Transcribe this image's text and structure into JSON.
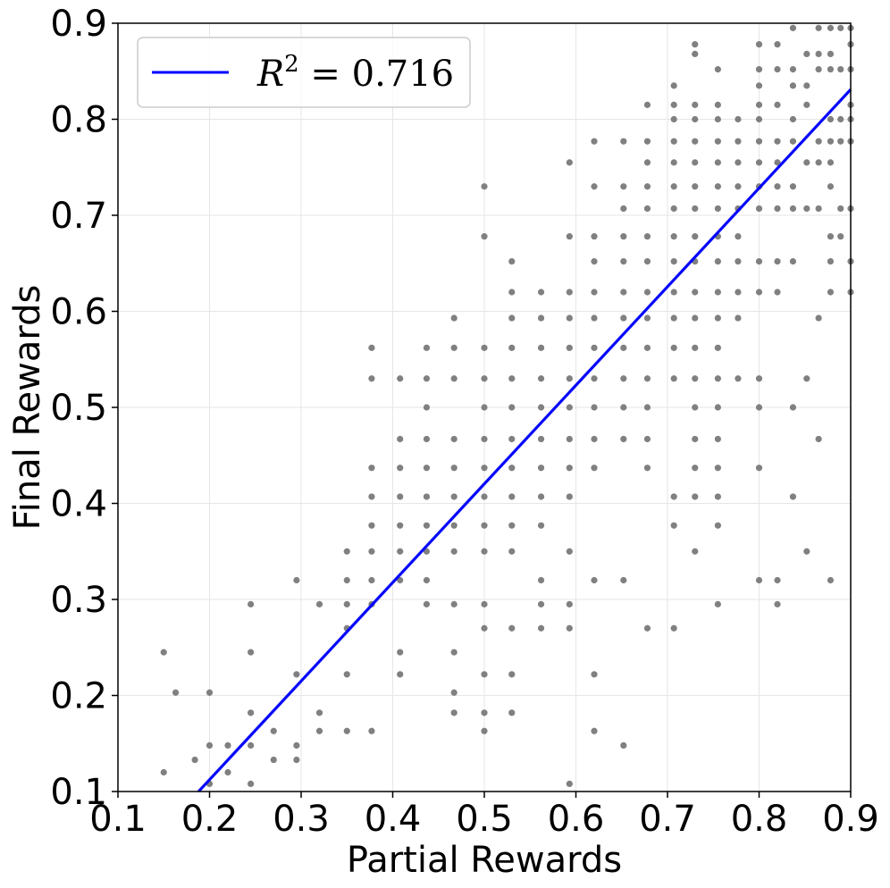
{
  "chart_data": {
    "type": "scatter",
    "xlabel": "Partial Rewards",
    "ylabel": "Final Rewards",
    "xlim": [
      0.1,
      0.9
    ],
    "ylim": [
      0.1,
      0.9
    ],
    "xticks": [
      "0.1",
      "0.2",
      "0.3",
      "0.4",
      "0.5",
      "0.6",
      "0.7",
      "0.8",
      "0.9"
    ],
    "yticks": [
      "0.1",
      "0.2",
      "0.3",
      "0.4",
      "0.5",
      "0.6",
      "0.7",
      "0.8",
      "0.9"
    ],
    "grid": true,
    "legend": {
      "placement": "top-left",
      "label": "R^2 = 0.716",
      "symbol": "R",
      "exponent": "2",
      "equals_value": " = 0.716"
    },
    "colors": {
      "points": "#808080",
      "fit_line": "#0000ff",
      "grid": "#e6e6e6"
    },
    "fit_line": {
      "r_squared": 0.716,
      "x": [
        0.188,
        0.9
      ],
      "y": [
        0.1,
        0.831
      ]
    },
    "series": [
      {
        "points": [
          [
            0.15,
            0.12
          ],
          [
            0.15,
            0.245
          ],
          [
            0.163,
            0.203
          ],
          [
            0.184,
            0.133
          ],
          [
            0.2,
            0.108
          ],
          [
            0.2,
            0.148
          ],
          [
            0.2,
            0.203
          ],
          [
            0.22,
            0.12
          ],
          [
            0.22,
            0.148
          ],
          [
            0.245,
            0.108
          ],
          [
            0.245,
            0.148
          ],
          [
            0.245,
            0.182
          ],
          [
            0.245,
            0.245
          ],
          [
            0.245,
            0.295
          ],
          [
            0.27,
            0.133
          ],
          [
            0.27,
            0.163
          ],
          [
            0.295,
            0.133
          ],
          [
            0.295,
            0.148
          ],
          [
            0.295,
            0.222
          ],
          [
            0.295,
            0.32
          ],
          [
            0.32,
            0.163
          ],
          [
            0.32,
            0.182
          ],
          [
            0.32,
            0.295
          ],
          [
            0.35,
            0.163
          ],
          [
            0.35,
            0.222
          ],
          [
            0.35,
            0.27
          ],
          [
            0.35,
            0.295
          ],
          [
            0.35,
            0.32
          ],
          [
            0.35,
            0.35
          ],
          [
            0.377,
            0.163
          ],
          [
            0.377,
            0.295
          ],
          [
            0.377,
            0.32
          ],
          [
            0.377,
            0.35
          ],
          [
            0.377,
            0.377
          ],
          [
            0.377,
            0.407
          ],
          [
            0.377,
            0.437
          ],
          [
            0.377,
            0.53
          ],
          [
            0.377,
            0.562
          ],
          [
            0.408,
            0.222
          ],
          [
            0.408,
            0.245
          ],
          [
            0.408,
            0.32
          ],
          [
            0.408,
            0.35
          ],
          [
            0.408,
            0.377
          ],
          [
            0.408,
            0.407
          ],
          [
            0.408,
            0.437
          ],
          [
            0.408,
            0.467
          ],
          [
            0.408,
            0.53
          ],
          [
            0.437,
            0.295
          ],
          [
            0.437,
            0.32
          ],
          [
            0.437,
            0.35
          ],
          [
            0.437,
            0.377
          ],
          [
            0.437,
            0.407
          ],
          [
            0.437,
            0.437
          ],
          [
            0.437,
            0.467
          ],
          [
            0.437,
            0.5
          ],
          [
            0.437,
            0.53
          ],
          [
            0.437,
            0.562
          ],
          [
            0.467,
            0.182
          ],
          [
            0.467,
            0.203
          ],
          [
            0.467,
            0.245
          ],
          [
            0.467,
            0.295
          ],
          [
            0.467,
            0.35
          ],
          [
            0.467,
            0.377
          ],
          [
            0.467,
            0.407
          ],
          [
            0.467,
            0.437
          ],
          [
            0.467,
            0.467
          ],
          [
            0.467,
            0.53
          ],
          [
            0.467,
            0.562
          ],
          [
            0.467,
            0.593
          ],
          [
            0.5,
            0.163
          ],
          [
            0.5,
            0.182
          ],
          [
            0.5,
            0.222
          ],
          [
            0.5,
            0.27
          ],
          [
            0.5,
            0.295
          ],
          [
            0.5,
            0.35
          ],
          [
            0.5,
            0.377
          ],
          [
            0.5,
            0.407
          ],
          [
            0.5,
            0.437
          ],
          [
            0.5,
            0.467
          ],
          [
            0.5,
            0.5
          ],
          [
            0.5,
            0.53
          ],
          [
            0.5,
            0.562
          ],
          [
            0.5,
            0.678
          ],
          [
            0.5,
            0.73
          ],
          [
            0.53,
            0.182
          ],
          [
            0.53,
            0.222
          ],
          [
            0.53,
            0.27
          ],
          [
            0.53,
            0.35
          ],
          [
            0.53,
            0.377
          ],
          [
            0.53,
            0.407
          ],
          [
            0.53,
            0.437
          ],
          [
            0.53,
            0.467
          ],
          [
            0.53,
            0.5
          ],
          [
            0.53,
            0.53
          ],
          [
            0.53,
            0.562
          ],
          [
            0.53,
            0.593
          ],
          [
            0.53,
            0.62
          ],
          [
            0.53,
            0.652
          ],
          [
            0.562,
            0.27
          ],
          [
            0.562,
            0.295
          ],
          [
            0.562,
            0.32
          ],
          [
            0.562,
            0.377
          ],
          [
            0.562,
            0.407
          ],
          [
            0.562,
            0.437
          ],
          [
            0.562,
            0.467
          ],
          [
            0.562,
            0.5
          ],
          [
            0.562,
            0.53
          ],
          [
            0.562,
            0.562
          ],
          [
            0.562,
            0.593
          ],
          [
            0.562,
            0.62
          ],
          [
            0.593,
            0.108
          ],
          [
            0.593,
            0.27
          ],
          [
            0.593,
            0.295
          ],
          [
            0.593,
            0.35
          ],
          [
            0.593,
            0.407
          ],
          [
            0.593,
            0.437
          ],
          [
            0.593,
            0.467
          ],
          [
            0.593,
            0.5
          ],
          [
            0.593,
            0.53
          ],
          [
            0.593,
            0.562
          ],
          [
            0.593,
            0.593
          ],
          [
            0.593,
            0.62
          ],
          [
            0.593,
            0.678
          ],
          [
            0.593,
            0.755
          ],
          [
            0.62,
            0.163
          ],
          [
            0.62,
            0.222
          ],
          [
            0.62,
            0.32
          ],
          [
            0.62,
            0.437
          ],
          [
            0.62,
            0.467
          ],
          [
            0.62,
            0.5
          ],
          [
            0.62,
            0.53
          ],
          [
            0.62,
            0.562
          ],
          [
            0.62,
            0.593
          ],
          [
            0.62,
            0.62
          ],
          [
            0.62,
            0.652
          ],
          [
            0.62,
            0.678
          ],
          [
            0.62,
            0.73
          ],
          [
            0.62,
            0.777
          ],
          [
            0.652,
            0.148
          ],
          [
            0.652,
            0.32
          ],
          [
            0.652,
            0.467
          ],
          [
            0.652,
            0.5
          ],
          [
            0.652,
            0.53
          ],
          [
            0.652,
            0.562
          ],
          [
            0.652,
            0.593
          ],
          [
            0.652,
            0.62
          ],
          [
            0.652,
            0.652
          ],
          [
            0.652,
            0.678
          ],
          [
            0.652,
            0.707
          ],
          [
            0.652,
            0.73
          ],
          [
            0.652,
            0.777
          ],
          [
            0.678,
            0.27
          ],
          [
            0.678,
            0.437
          ],
          [
            0.678,
            0.467
          ],
          [
            0.678,
            0.5
          ],
          [
            0.678,
            0.53
          ],
          [
            0.678,
            0.562
          ],
          [
            0.678,
            0.593
          ],
          [
            0.678,
            0.62
          ],
          [
            0.678,
            0.652
          ],
          [
            0.678,
            0.678
          ],
          [
            0.678,
            0.707
          ],
          [
            0.678,
            0.73
          ],
          [
            0.678,
            0.755
          ],
          [
            0.678,
            0.777
          ],
          [
            0.678,
            0.815
          ],
          [
            0.707,
            0.27
          ],
          [
            0.707,
            0.377
          ],
          [
            0.707,
            0.407
          ],
          [
            0.707,
            0.53
          ],
          [
            0.707,
            0.562
          ],
          [
            0.707,
            0.593
          ],
          [
            0.707,
            0.62
          ],
          [
            0.707,
            0.652
          ],
          [
            0.707,
            0.678
          ],
          [
            0.707,
            0.707
          ],
          [
            0.707,
            0.73
          ],
          [
            0.707,
            0.755
          ],
          [
            0.707,
            0.777
          ],
          [
            0.707,
            0.8
          ],
          [
            0.707,
            0.815
          ],
          [
            0.707,
            0.835
          ],
          [
            0.73,
            0.35
          ],
          [
            0.73,
            0.407
          ],
          [
            0.73,
            0.437
          ],
          [
            0.73,
            0.467
          ],
          [
            0.73,
            0.5
          ],
          [
            0.73,
            0.53
          ],
          [
            0.73,
            0.562
          ],
          [
            0.73,
            0.593
          ],
          [
            0.73,
            0.62
          ],
          [
            0.73,
            0.652
          ],
          [
            0.73,
            0.678
          ],
          [
            0.73,
            0.707
          ],
          [
            0.73,
            0.73
          ],
          [
            0.73,
            0.755
          ],
          [
            0.73,
            0.777
          ],
          [
            0.73,
            0.8
          ],
          [
            0.73,
            0.815
          ],
          [
            0.73,
            0.868
          ],
          [
            0.73,
            0.878
          ],
          [
            0.755,
            0.295
          ],
          [
            0.755,
            0.377
          ],
          [
            0.755,
            0.407
          ],
          [
            0.755,
            0.437
          ],
          [
            0.755,
            0.467
          ],
          [
            0.755,
            0.5
          ],
          [
            0.755,
            0.53
          ],
          [
            0.755,
            0.562
          ],
          [
            0.755,
            0.593
          ],
          [
            0.755,
            0.62
          ],
          [
            0.755,
            0.652
          ],
          [
            0.755,
            0.678
          ],
          [
            0.755,
            0.707
          ],
          [
            0.755,
            0.73
          ],
          [
            0.755,
            0.755
          ],
          [
            0.755,
            0.777
          ],
          [
            0.755,
            0.8
          ],
          [
            0.755,
            0.815
          ],
          [
            0.755,
            0.852
          ],
          [
            0.777,
            0.53
          ],
          [
            0.777,
            0.593
          ],
          [
            0.777,
            0.62
          ],
          [
            0.777,
            0.652
          ],
          [
            0.777,
            0.678
          ],
          [
            0.777,
            0.707
          ],
          [
            0.777,
            0.73
          ],
          [
            0.777,
            0.755
          ],
          [
            0.777,
            0.777
          ],
          [
            0.777,
            0.8
          ],
          [
            0.8,
            0.32
          ],
          [
            0.8,
            0.437
          ],
          [
            0.8,
            0.5
          ],
          [
            0.8,
            0.53
          ],
          [
            0.8,
            0.62
          ],
          [
            0.8,
            0.652
          ],
          [
            0.8,
            0.707
          ],
          [
            0.8,
            0.73
          ],
          [
            0.8,
            0.755
          ],
          [
            0.8,
            0.777
          ],
          [
            0.8,
            0.8
          ],
          [
            0.8,
            0.815
          ],
          [
            0.8,
            0.835
          ],
          [
            0.8,
            0.852
          ],
          [
            0.8,
            0.878
          ],
          [
            0.82,
            0.295
          ],
          [
            0.82,
            0.32
          ],
          [
            0.82,
            0.62
          ],
          [
            0.82,
            0.652
          ],
          [
            0.82,
            0.707
          ],
          [
            0.82,
            0.73
          ],
          [
            0.82,
            0.755
          ],
          [
            0.82,
            0.777
          ],
          [
            0.82,
            0.815
          ],
          [
            0.82,
            0.852
          ],
          [
            0.82,
            0.878
          ],
          [
            0.837,
            0.407
          ],
          [
            0.837,
            0.5
          ],
          [
            0.837,
            0.652
          ],
          [
            0.837,
            0.707
          ],
          [
            0.837,
            0.73
          ],
          [
            0.837,
            0.777
          ],
          [
            0.837,
            0.8
          ],
          [
            0.837,
            0.835
          ],
          [
            0.837,
            0.852
          ],
          [
            0.837,
            0.895
          ],
          [
            0.852,
            0.35
          ],
          [
            0.852,
            0.53
          ],
          [
            0.852,
            0.707
          ],
          [
            0.852,
            0.755
          ],
          [
            0.852,
            0.815
          ],
          [
            0.852,
            0.835
          ],
          [
            0.852,
            0.868
          ],
          [
            0.865,
            0.467
          ],
          [
            0.865,
            0.593
          ],
          [
            0.865,
            0.707
          ],
          [
            0.865,
            0.755
          ],
          [
            0.865,
            0.777
          ],
          [
            0.865,
            0.852
          ],
          [
            0.865,
            0.868
          ],
          [
            0.865,
            0.895
          ],
          [
            0.878,
            0.32
          ],
          [
            0.878,
            0.62
          ],
          [
            0.878,
            0.652
          ],
          [
            0.878,
            0.678
          ],
          [
            0.878,
            0.73
          ],
          [
            0.878,
            0.755
          ],
          [
            0.878,
            0.777
          ],
          [
            0.878,
            0.8
          ],
          [
            0.878,
            0.852
          ],
          [
            0.878,
            0.868
          ],
          [
            0.878,
            0.895
          ],
          [
            0.889,
            0.678
          ],
          [
            0.889,
            0.707
          ],
          [
            0.889,
            0.777
          ],
          [
            0.889,
            0.8
          ],
          [
            0.889,
            0.852
          ],
          [
            0.889,
            0.895
          ],
          [
            0.9,
            0.62
          ],
          [
            0.9,
            0.652
          ],
          [
            0.9,
            0.707
          ],
          [
            0.9,
            0.777
          ],
          [
            0.9,
            0.8
          ],
          [
            0.9,
            0.815
          ],
          [
            0.9,
            0.852
          ],
          [
            0.9,
            0.878
          ],
          [
            0.9,
            0.895
          ]
        ]
      }
    ]
  }
}
